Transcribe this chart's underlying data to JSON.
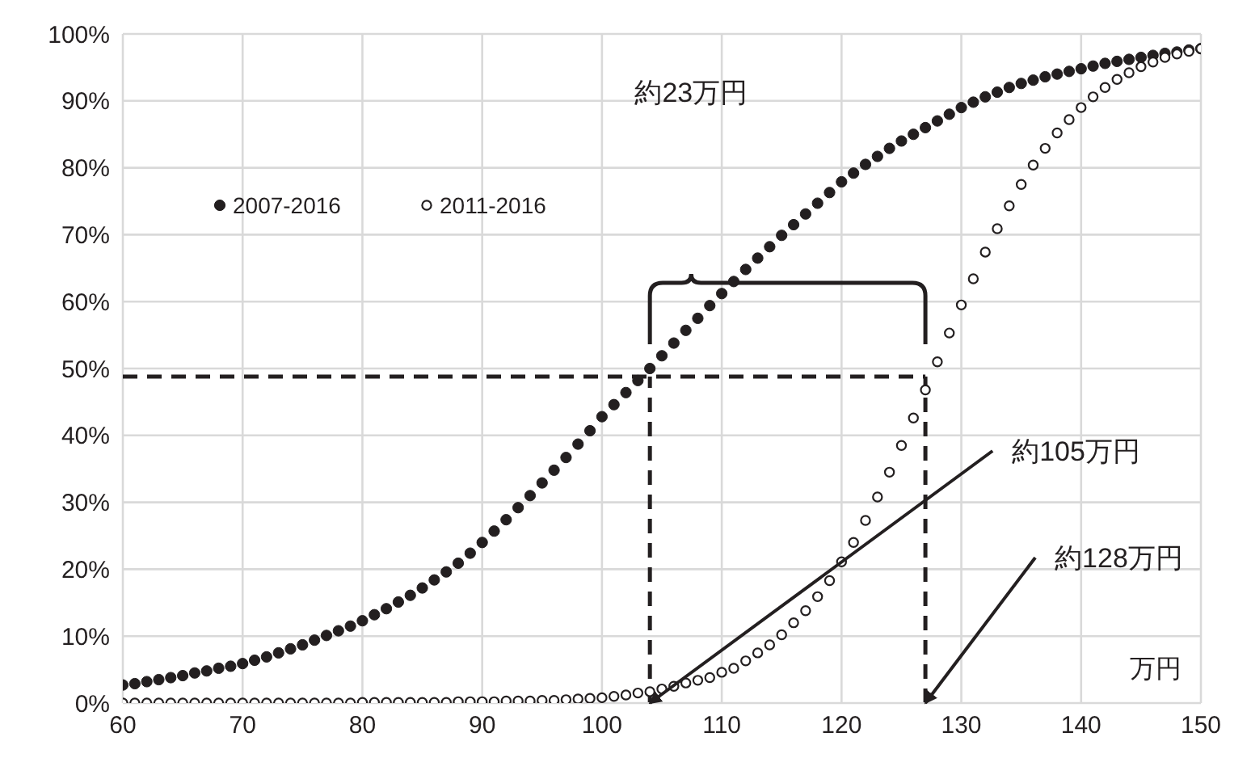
{
  "chart_data": {
    "type": "scatter",
    "xlabel": "万円",
    "legend": "top left",
    "grid": true,
    "marker": "circle",
    "xlim": [
      60,
      150
    ],
    "xticks": [
      60,
      70,
      80,
      90,
      100,
      110,
      120,
      130,
      140,
      150
    ],
    "ylim": [
      0,
      100
    ],
    "yticks": [
      {
        "value": 0,
        "label": "0%"
      },
      {
        "value": 10,
        "label": "10%"
      },
      {
        "value": 20,
        "label": "20%"
      },
      {
        "value": 30,
        "label": "30%"
      },
      {
        "value": 40,
        "label": "40%"
      },
      {
        "value": 50,
        "label": "50%"
      },
      {
        "value": 60,
        "label": "60%"
      },
      {
        "value": 70,
        "label": "70%"
      },
      {
        "value": 80,
        "label": "80%"
      },
      {
        "value": 90,
        "label": "90%"
      },
      {
        "value": 100,
        "label": "100%"
      }
    ],
    "x": [
      60,
      61,
      62,
      63,
      64,
      65,
      66,
      67,
      68,
      69,
      70,
      71,
      72,
      73,
      74,
      75,
      76,
      77,
      78,
      79,
      80,
      81,
      82,
      83,
      84,
      85,
      86,
      87,
      88,
      89,
      90,
      91,
      92,
      93,
      94,
      95,
      96,
      97,
      98,
      99,
      100,
      101,
      102,
      103,
      104,
      105,
      106,
      107,
      108,
      109,
      110,
      111,
      112,
      113,
      114,
      115,
      116,
      117,
      118,
      119,
      120,
      121,
      122,
      123,
      124,
      125,
      126,
      127,
      128,
      129,
      130,
      131,
      132,
      133,
      134,
      135,
      136,
      137,
      138,
      139,
      140,
      141,
      142,
      143,
      144,
      145,
      146,
      147,
      148,
      149,
      150
    ],
    "series": [
      {
        "name": "2007-2016",
        "color": "#231f20",
        "values": [
          2.7,
          2.9,
          3.2,
          3.5,
          3.8,
          4.1,
          4.5,
          4.8,
          5.2,
          5.5,
          5.9,
          6.4,
          6.9,
          7.5,
          8.1,
          8.7,
          9.4,
          10.1,
          10.8,
          11.5,
          12.3,
          13.2,
          14.1,
          15.1,
          16.1,
          17.2,
          18.4,
          19.6,
          20.9,
          22.4,
          24.0,
          25.7,
          27.4,
          29.2,
          31.0,
          32.9,
          34.8,
          36.7,
          38.7,
          40.7,
          42.8,
          44.6,
          46.4,
          48.2,
          50.0,
          51.9,
          53.8,
          55.7,
          57.5,
          59.4,
          61.2,
          63.0,
          64.8,
          66.5,
          68.2,
          69.9,
          71.5,
          73.1,
          74.7,
          76.3,
          77.9,
          79.2,
          80.5,
          81.7,
          82.9,
          84.0,
          85.0,
          86.0,
          87.0,
          88.0,
          89.0,
          89.8,
          90.6,
          91.3,
          92.0,
          92.6,
          93.1,
          93.6,
          94.0,
          94.4,
          94.8,
          95.2,
          95.6,
          95.9,
          96.2,
          96.5,
          96.8,
          97.1,
          97.3,
          97.6,
          97.8
        ]
      },
      {
        "name": "2011-2016",
        "color": "#231f20",
        "values": [
          0,
          0,
          0,
          0,
          0,
          0,
          0,
          0,
          0,
          0,
          0,
          0,
          0,
          0,
          0,
          0,
          0,
          0,
          0,
          0,
          0.1,
          0.1,
          0.1,
          0.1,
          0.1,
          0.1,
          0.1,
          0.1,
          0.2,
          0.2,
          0.2,
          0.2,
          0.3,
          0.3,
          0.3,
          0.4,
          0.4,
          0.5,
          0.6,
          0.7,
          0.8,
          1.0,
          1.2,
          1.5,
          1.7,
          2.1,
          2.5,
          3.0,
          3.4,
          3.8,
          4.6,
          5.2,
          6.3,
          7.5,
          8.7,
          10.2,
          12.0,
          13.8,
          15.9,
          18.3,
          21.1,
          24.0,
          27.3,
          30.8,
          34.5,
          38.5,
          42.6,
          46.8,
          51.0,
          55.3,
          59.5,
          63.4,
          67.4,
          70.9,
          74.3,
          77.5,
          80.4,
          82.9,
          85.2,
          87.2,
          89.0,
          90.6,
          92.0,
          93.2,
          94.2,
          95.1,
          95.8,
          96.5,
          97.0,
          97.4,
          97.8
        ]
      }
    ],
    "ref_lines": [
      {
        "axis": "y",
        "value": 48.8,
        "line_style": "dashed",
        "color": "#231f20"
      },
      {
        "axis": "x",
        "value": 104,
        "line_style": "dashed",
        "color": "#231f20"
      },
      {
        "axis": "x",
        "value": 127,
        "line_style": "dashed",
        "color": "#231f20"
      }
    ],
    "annotations": [
      "約23万円",
      {
        "text": "約105万円",
        "x": 104,
        "y": 0
      },
      {
        "text": "約128万円",
        "x": 127,
        "y": 0
      }
    ]
  }
}
